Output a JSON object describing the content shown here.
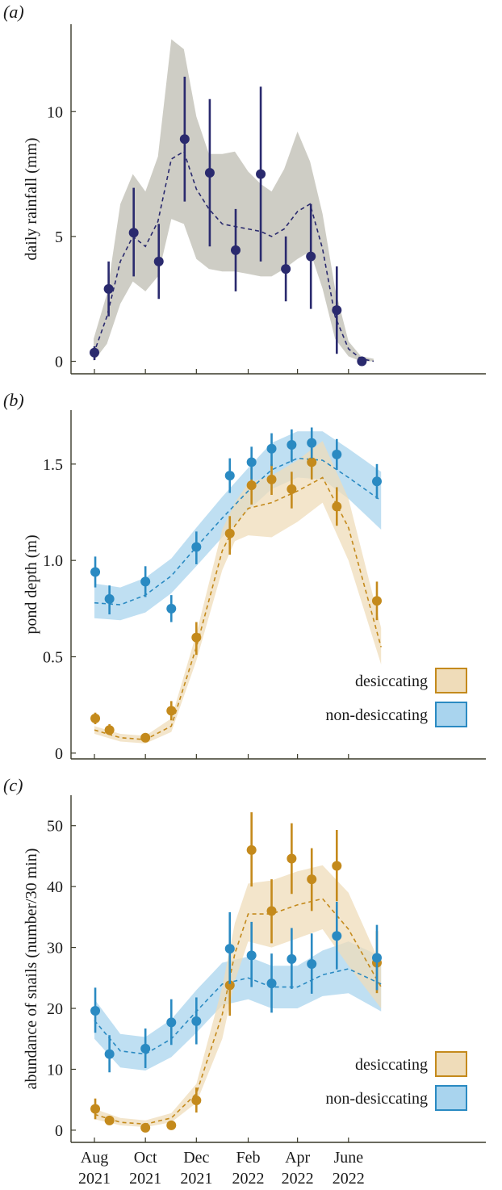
{
  "colors": {
    "rain_band": "#bdbcb2",
    "rain_point": "#2a2a6e",
    "desiccating": "#c48a1c",
    "desiccating_band": "#efdcb9",
    "non_desiccating": "#2a8ac2",
    "non_desiccating_band": "#a9d4ee",
    "axis": "#3a3a2a"
  },
  "x_axis_ticks": [
    {
      "month": "Aug",
      "year": "2021"
    },
    {
      "month": "Oct",
      "year": "2021"
    },
    {
      "month": "Dec",
      "year": "2021"
    },
    {
      "month": "Feb",
      "year": "2022"
    },
    {
      "month": "Apr",
      "year": "2022"
    },
    {
      "month": "June",
      "year": "2022"
    }
  ],
  "chart_data": [
    {
      "panel": "(a)",
      "panel_letter": "a",
      "type": "line",
      "ylabel": "daily rainfall (mm)",
      "yticks": [
        "0",
        "5",
        "10"
      ],
      "ylim": [
        -0.5,
        13.5
      ],
      "x_dates": [
        "2021-08",
        "2021-09",
        "2021-10",
        "2021-11",
        "2021-12",
        "2022-01",
        "2022-02",
        "2022-03",
        "2022-04",
        "2022-05",
        "2022-06",
        "2022-07"
      ],
      "points": [
        {
          "date": "2021-08-01",
          "y": 0.35,
          "lo": 0.05,
          "hi": 0.6
        },
        {
          "date": "2021-08-18",
          "y": 2.9,
          "lo": 1.8,
          "hi": 4.0
        },
        {
          "date": "2021-09-17",
          "y": 5.15,
          "lo": 3.4,
          "hi": 6.95
        },
        {
          "date": "2021-10-17",
          "y": 4.0,
          "lo": 2.5,
          "hi": 5.5
        },
        {
          "date": "2021-11-17",
          "y": 8.9,
          "lo": 6.4,
          "hi": 11.4
        },
        {
          "date": "2021-12-17",
          "y": 7.55,
          "lo": 4.6,
          "hi": 10.5
        },
        {
          "date": "2022-01-17",
          "y": 4.45,
          "lo": 2.8,
          "hi": 6.1
        },
        {
          "date": "2022-02-16",
          "y": 7.5,
          "lo": 4.0,
          "hi": 11.0
        },
        {
          "date": "2022-03-18",
          "y": 3.7,
          "lo": 2.4,
          "hi": 5.0
        },
        {
          "date": "2022-04-17",
          "y": 4.2,
          "lo": 2.1,
          "hi": 6.3
        },
        {
          "date": "2022-05-18",
          "y": 2.05,
          "lo": 0.3,
          "hi": 3.8
        },
        {
          "date": "2022-06-17",
          "y": 0.0,
          "lo": 0.0,
          "hi": 0.0
        }
      ],
      "fit": {
        "name": "",
        "x": [
          "2021-07-31",
          "2021-08-16",
          "2021-09-01",
          "2021-09-16",
          "2021-10-01",
          "2021-10-16",
          "2021-11-01",
          "2021-11-16",
          "2021-12-01",
          "2021-12-16",
          "2022-01-01",
          "2022-01-16",
          "2022-02-01",
          "2022-02-16",
          "2022-03-01",
          "2022-03-16",
          "2022-04-01",
          "2022-04-16",
          "2022-05-01",
          "2022-05-16",
          "2022-06-01",
          "2022-06-16",
          "2022-07-01"
        ],
        "y": [
          0.3,
          1.8,
          4.0,
          5.0,
          4.6,
          5.6,
          8.1,
          8.4,
          6.9,
          6.1,
          5.5,
          5.4,
          5.3,
          5.2,
          5.0,
          5.3,
          6.0,
          6.3,
          4.5,
          1.8,
          0.5,
          0.1,
          0.0
        ],
        "lower": [
          0.0,
          0.7,
          2.3,
          3.2,
          2.8,
          3.4,
          5.7,
          5.5,
          4.1,
          3.7,
          3.6,
          3.6,
          3.5,
          3.4,
          3.4,
          3.7,
          4.1,
          4.4,
          2.9,
          0.9,
          0.2,
          0.0,
          0.0
        ],
        "upper": [
          0.9,
          2.7,
          6.3,
          7.5,
          6.8,
          8.2,
          12.9,
          12.5,
          9.8,
          8.3,
          8.3,
          8.4,
          7.6,
          7.1,
          6.8,
          7.7,
          9.2,
          8.0,
          5.9,
          2.9,
          0.8,
          0.2,
          0.1
        ]
      }
    },
    {
      "panel": "(b)",
      "panel_letter": "b",
      "type": "line",
      "ylabel": "pond depth (m)",
      "yticks": [
        "0",
        "0.5",
        "1.0",
        "1.5"
      ],
      "ylim": [
        -0.03,
        1.78
      ],
      "legend": {
        "placement": "bottom-right",
        "entries": [
          "desiccating",
          "non-desiccating"
        ]
      },
      "series": [
        {
          "name": "desiccating",
          "points": [
            {
              "date": "2021-08-02",
              "y": 0.18,
              "lo": 0.15,
              "hi": 0.21
            },
            {
              "date": "2021-08-19",
              "y": 0.12,
              "lo": 0.1,
              "hi": 0.15
            },
            {
              "date": "2021-10-01",
              "y": 0.08,
              "lo": 0.07,
              "hi": 0.1
            },
            {
              "date": "2021-11-01",
              "y": 0.22,
              "lo": 0.17,
              "hi": 0.27
            },
            {
              "date": "2021-12-01",
              "y": 0.6,
              "lo": 0.51,
              "hi": 0.68
            },
            {
              "date": "2022-01-10",
              "y": 1.14,
              "lo": 1.03,
              "hi": 1.23
            },
            {
              "date": "2022-02-05",
              "y": 1.39,
              "lo": 1.29,
              "hi": 1.48
            },
            {
              "date": "2022-03-01",
              "y": 1.42,
              "lo": 1.34,
              "hi": 1.5
            },
            {
              "date": "2022-03-25",
              "y": 1.37,
              "lo": 1.27,
              "hi": 1.46
            },
            {
              "date": "2022-04-18",
              "y": 1.51,
              "lo": 1.42,
              "hi": 1.6
            },
            {
              "date": "2022-05-18",
              "y": 1.28,
              "lo": 1.18,
              "hi": 1.38
            },
            {
              "date": "2022-07-05",
              "y": 0.79,
              "lo": 0.69,
              "hi": 0.89
            }
          ],
          "fit": {
            "x": [
              "2021-08-01",
              "2021-09-01",
              "2021-10-01",
              "2021-11-01",
              "2021-12-01",
              "2022-01-01",
              "2022-01-16",
              "2022-02-01",
              "2022-03-01",
              "2022-04-01",
              "2022-05-01",
              "2022-06-01",
              "2022-07-10"
            ],
            "y": [
              0.12,
              0.08,
              0.07,
              0.14,
              0.55,
              1.05,
              1.18,
              1.27,
              1.3,
              1.36,
              1.43,
              1.17,
              0.55
            ],
            "lower": [
              0.1,
              0.06,
              0.05,
              0.11,
              0.48,
              0.95,
              1.1,
              1.13,
              1.12,
              1.2,
              1.3,
              1.0,
              0.46
            ],
            "upper": [
              0.14,
              0.1,
              0.09,
              0.18,
              0.62,
              1.16,
              1.3,
              1.4,
              1.44,
              1.52,
              1.62,
              1.32,
              0.65
            ]
          }
        },
        {
          "name": "non-desiccating",
          "points": [
            {
              "date": "2021-08-02",
              "y": 0.94,
              "lo": 0.86,
              "hi": 1.02
            },
            {
              "date": "2021-08-19",
              "y": 0.8,
              "lo": 0.72,
              "hi": 0.87
            },
            {
              "date": "2021-10-01",
              "y": 0.89,
              "lo": 0.81,
              "hi": 0.97
            },
            {
              "date": "2021-11-01",
              "y": 0.75,
              "lo": 0.68,
              "hi": 0.82
            },
            {
              "date": "2021-12-01",
              "y": 1.07,
              "lo": 0.98,
              "hi": 1.15
            },
            {
              "date": "2022-01-10",
              "y": 1.44,
              "lo": 1.35,
              "hi": 1.53
            },
            {
              "date": "2022-02-05",
              "y": 1.51,
              "lo": 1.42,
              "hi": 1.59
            },
            {
              "date": "2022-03-01",
              "y": 1.58,
              "lo": 1.49,
              "hi": 1.66
            },
            {
              "date": "2022-03-25",
              "y": 1.6,
              "lo": 1.51,
              "hi": 1.68
            },
            {
              "date": "2022-04-18",
              "y": 1.61,
              "lo": 1.53,
              "hi": 1.69
            },
            {
              "date": "2022-05-18",
              "y": 1.55,
              "lo": 1.47,
              "hi": 1.63
            },
            {
              "date": "2022-07-05",
              "y": 1.41,
              "lo": 1.32,
              "hi": 1.5
            }
          ],
          "fit": {
            "x": [
              "2021-08-01",
              "2021-09-01",
              "2021-10-01",
              "2021-11-01",
              "2021-12-01",
              "2022-01-01",
              "2022-02-01",
              "2022-03-01",
              "2022-04-01",
              "2022-05-01",
              "2022-06-01",
              "2022-07-10"
            ],
            "y": [
              0.78,
              0.77,
              0.82,
              0.92,
              1.07,
              1.22,
              1.36,
              1.47,
              1.53,
              1.52,
              1.43,
              1.31
            ],
            "lower": [
              0.7,
              0.69,
              0.73,
              0.83,
              0.97,
              1.12,
              1.26,
              1.37,
              1.43,
              1.42,
              1.32,
              1.16
            ],
            "upper": [
              0.88,
              0.86,
              0.91,
              1.01,
              1.17,
              1.33,
              1.48,
              1.61,
              1.67,
              1.67,
              1.58,
              1.46
            ]
          }
        }
      ]
    },
    {
      "panel": "(c)",
      "panel_letter": "c",
      "type": "line",
      "ylabel": "abundance of snails (number/30 min)",
      "yticks": [
        "0",
        "10",
        "20",
        "30",
        "40",
        "50"
      ],
      "ylim": [
        -2,
        55
      ],
      "legend": {
        "placement": "bottom-right",
        "entries": [
          "desiccating",
          "non-desiccating"
        ]
      },
      "series": [
        {
          "name": "desiccating",
          "points": [
            {
              "date": "2021-08-02",
              "y": 3.5,
              "lo": 1.8,
              "hi": 5.2
            },
            {
              "date": "2021-08-19",
              "y": 1.6,
              "lo": 1.0,
              "hi": 2.2
            },
            {
              "date": "2021-10-01",
              "y": 0.4,
              "lo": 0.1,
              "hi": 0.8
            },
            {
              "date": "2021-11-01",
              "y": 0.8,
              "lo": 0.4,
              "hi": 1.3
            },
            {
              "date": "2021-12-01",
              "y": 4.9,
              "lo": 2.9,
              "hi": 7.0
            },
            {
              "date": "2022-01-10",
              "y": 23.8,
              "lo": 18.8,
              "hi": 28.6
            },
            {
              "date": "2022-02-05",
              "y": 46.0,
              "lo": 40.0,
              "hi": 52.2
            },
            {
              "date": "2022-03-01",
              "y": 36.0,
              "lo": 30.7,
              "hi": 41.2
            },
            {
              "date": "2022-03-25",
              "y": 44.6,
              "lo": 38.8,
              "hi": 50.4
            },
            {
              "date": "2022-04-18",
              "y": 41.2,
              "lo": 36.0,
              "hi": 46.3
            },
            {
              "date": "2022-05-18",
              "y": 43.4,
              "lo": 37.6,
              "hi": 49.3
            },
            {
              "date": "2022-07-05",
              "y": 27.5,
              "lo": 22.5,
              "hi": 32.7
            }
          ],
          "fit": {
            "x": [
              "2021-08-01",
              "2021-09-01",
              "2021-10-01",
              "2021-11-01",
              "2021-12-01",
              "2022-01-01",
              "2022-01-16",
              "2022-02-01",
              "2022-03-01",
              "2022-04-01",
              "2022-05-01",
              "2022-06-01",
              "2022-07-10"
            ],
            "y": [
              2.6,
              1.3,
              1.0,
              2.0,
              6.0,
              19.0,
              29.0,
              35.5,
              35.5,
              37.0,
              38.0,
              33.0,
              23.5
            ],
            "lower": [
              1.8,
              0.8,
              0.5,
              1.3,
              4.5,
              15.0,
              24.5,
              31.0,
              30.0,
              31.5,
              33.0,
              27.0,
              20.0
            ],
            "upper": [
              3.5,
              2.0,
              1.6,
              2.8,
              7.6,
              23.5,
              34.0,
              40.5,
              41.0,
              42.5,
              43.5,
              39.0,
              27.0
            ]
          }
        },
        {
          "name": "non-desiccating",
          "points": [
            {
              "date": "2021-08-02",
              "y": 19.6,
              "lo": 16.0,
              "hi": 23.4
            },
            {
              "date": "2021-08-19",
              "y": 12.5,
              "lo": 9.5,
              "hi": 15.6
            },
            {
              "date": "2021-10-01",
              "y": 13.4,
              "lo": 10.2,
              "hi": 16.7
            },
            {
              "date": "2021-11-01",
              "y": 17.7,
              "lo": 14.0,
              "hi": 21.5
            },
            {
              "date": "2021-12-01",
              "y": 17.9,
              "lo": 14.1,
              "hi": 21.8
            },
            {
              "date": "2022-01-10",
              "y": 29.8,
              "lo": 24.0,
              "hi": 35.8
            },
            {
              "date": "2022-02-05",
              "y": 28.7,
              "lo": 23.5,
              "hi": 34.2
            },
            {
              "date": "2022-03-01",
              "y": 24.1,
              "lo": 19.3,
              "hi": 29.0
            },
            {
              "date": "2022-03-25",
              "y": 28.1,
              "lo": 23.2,
              "hi": 33.2
            },
            {
              "date": "2022-04-18",
              "y": 27.3,
              "lo": 22.4,
              "hi": 32.3
            },
            {
              "date": "2022-05-18",
              "y": 31.9,
              "lo": 26.4,
              "hi": 37.5
            },
            {
              "date": "2022-07-05",
              "y": 28.3,
              "lo": 23.0,
              "hi": 33.7
            }
          ],
          "fit": {
            "x": [
              "2021-08-01",
              "2021-09-01",
              "2021-10-01",
              "2021-11-01",
              "2021-12-01",
              "2022-01-01",
              "2022-02-01",
              "2022-03-01",
              "2022-04-01",
              "2022-05-01",
              "2022-06-01",
              "2022-07-10"
            ],
            "y": [
              18.0,
              13.0,
              12.5,
              15.0,
              19.5,
              24.0,
              25.0,
              23.5,
              23.5,
              25.5,
              26.5,
              24.0
            ],
            "lower": [
              15.0,
              10.3,
              9.8,
              12.0,
              16.0,
              20.5,
              21.5,
              20.0,
              20.0,
              22.0,
              22.5,
              19.5
            ],
            "upper": [
              21.5,
              15.8,
              15.3,
              18.2,
              23.0,
              27.5,
              28.5,
              27.0,
              27.0,
              29.5,
              31.0,
              28.5
            ]
          }
        }
      ]
    }
  ]
}
